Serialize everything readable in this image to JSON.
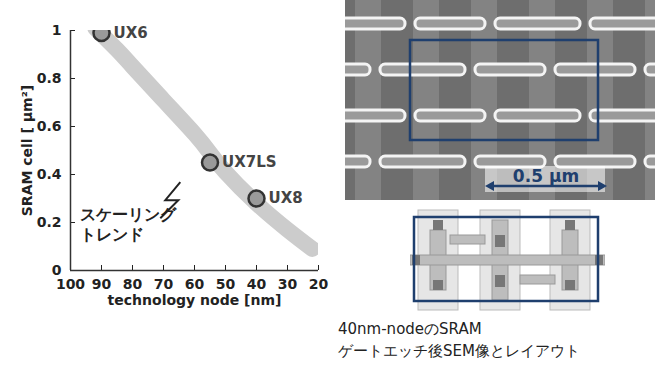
{
  "chart_data": {
    "type": "scatter",
    "xlabel": "technology node [nm]",
    "ylabel": "SRAM cell [ μm²]",
    "x": [
      90,
      55,
      40
    ],
    "values": [
      0.99,
      0.45,
      0.3
    ],
    "point_labels": [
      "UX6",
      "UX7LS",
      "UX8"
    ],
    "color": "#9a9a9a",
    "marker": "circle",
    "trend": {
      "x": [
        92,
        85,
        80,
        70,
        60,
        55,
        50,
        40,
        30,
        22
      ],
      "values": [
        1.01,
        0.92,
        0.85,
        0.71,
        0.57,
        0.49,
        0.41,
        0.28,
        0.17,
        0.09
      ],
      "color": "#cccccc"
    },
    "annotations": [
      {
        "lines": [
          "スケーリング",
          "トレンド"
        ],
        "x": 97,
        "y": 0.27
      }
    ],
    "xlim": [
      100,
      20
    ],
    "xticks": [
      100,
      90,
      80,
      70,
      60,
      50,
      40,
      30,
      20
    ],
    "ylim": [
      0,
      1
    ],
    "yticks": [
      0,
      0.2,
      0.4,
      0.6,
      0.8,
      1
    ],
    "grid": false
  },
  "image_panel": {
    "scale_bar": "0.5 μm",
    "frame_color": "#1f3f6e",
    "caption": [
      "40nm-nodeのSRAM",
      "ゲートエッチ後SEM像とレイアウト"
    ]
  }
}
